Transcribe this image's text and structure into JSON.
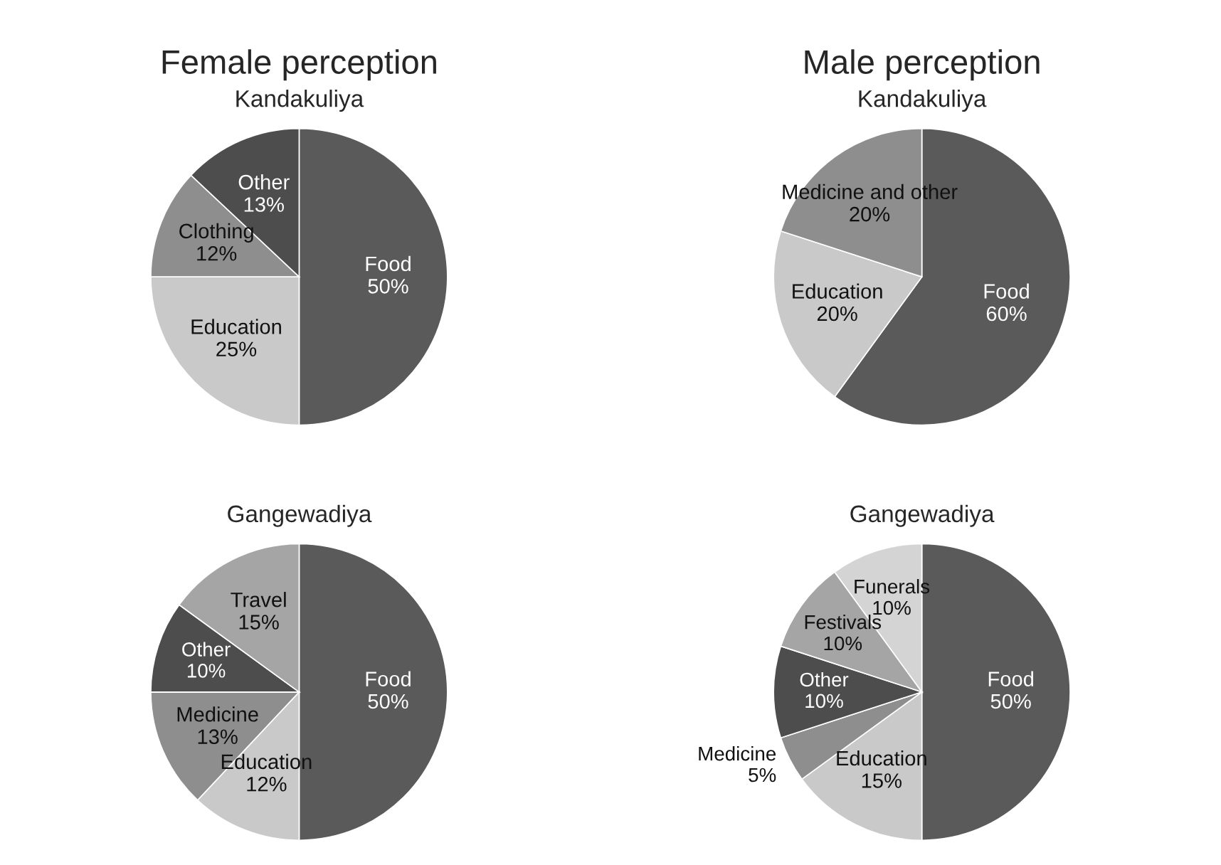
{
  "chart_data": [
    {
      "type": "pie",
      "title": "Female perception",
      "subtitle": "Kandakuliya",
      "categories": [
        "Food",
        "Education",
        "Clothing",
        "Other"
      ],
      "values": [
        50,
        25,
        12,
        13
      ],
      "colors": [
        "#5a5a5a",
        "#c9c9c9",
        "#8e8e8e",
        "#4d4d4d"
      ],
      "value_labels": [
        "50%",
        "25%",
        "12%",
        "13%"
      ]
    },
    {
      "type": "pie",
      "title": "Male perception",
      "subtitle": "Kandakuliya",
      "categories": [
        "Food",
        "Education",
        "Medicine and other"
      ],
      "values": [
        60,
        20,
        20
      ],
      "colors": [
        "#5a5a5a",
        "#c9c9c9",
        "#8e8e8e"
      ],
      "value_labels": [
        "60%",
        "20%",
        "20%"
      ]
    },
    {
      "type": "pie",
      "subtitle": "Gangewadiya",
      "categories": [
        "Food",
        "Education",
        "Medicine",
        "Other",
        "Travel"
      ],
      "values": [
        50,
        12,
        13,
        10,
        15
      ],
      "colors": [
        "#5a5a5a",
        "#c9c9c9",
        "#8e8e8e",
        "#4d4d4d",
        "#a5a5a5"
      ],
      "value_labels": [
        "50%",
        "12%",
        "13%",
        "10%",
        "15%"
      ]
    },
    {
      "type": "pie",
      "subtitle": "Gangewadiya",
      "categories": [
        "Food",
        "Education",
        "Medicine",
        "Other",
        "Festivals",
        "Funerals"
      ],
      "values": [
        50,
        15,
        5,
        10,
        10,
        10
      ],
      "colors": [
        "#5a5a5a",
        "#c9c9c9",
        "#8e8e8e",
        "#4d4d4d",
        "#a5a5a5",
        "#d4d4d4"
      ],
      "value_labels": [
        "50%",
        "15%",
        "5%",
        "10%",
        "10%",
        "10%"
      ]
    }
  ]
}
